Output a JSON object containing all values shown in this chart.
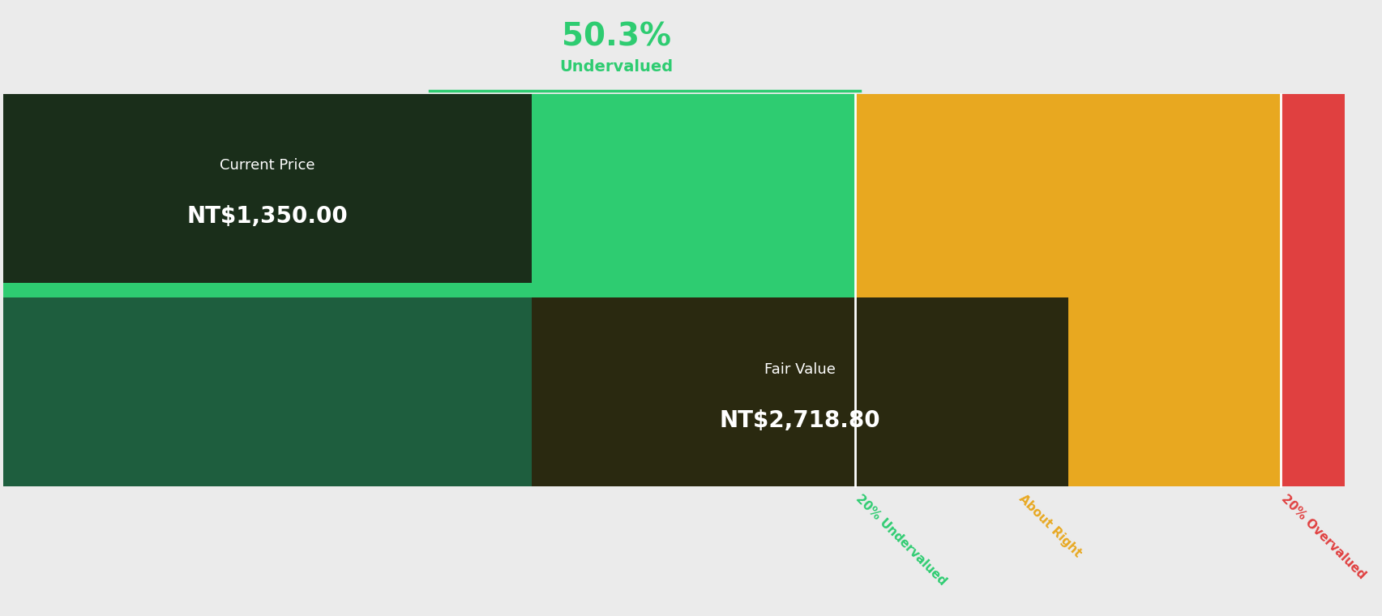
{
  "current_price": 1350.0,
  "fair_value": 2718.8,
  "percent_undervalued": "50.3%",
  "undervalued_label": "Undervalued",
  "current_price_label": "Current Price",
  "current_price_text": "NT$1,350.00",
  "fair_value_label": "Fair Value",
  "fair_value_text": "NT$2,718.80",
  "band_20pct_undervalued_label": "20% Undervalued",
  "band_about_right_label": "About Right",
  "band_20pct_overvalued_label": "20% Overvalued",
  "color_light_green": "#2ecc71",
  "color_dark_green": "#1e5e3e",
  "color_gold": "#e8a820",
  "color_red": "#e04040",
  "color_bg": "#ebebeb",
  "color_header_green": "#2ecc71",
  "color_dark_box": "#1a2e1a",
  "color_fair_box": "#2a2910",
  "boundary1_factor": 0.8,
  "boundary2_factor": 1.2
}
